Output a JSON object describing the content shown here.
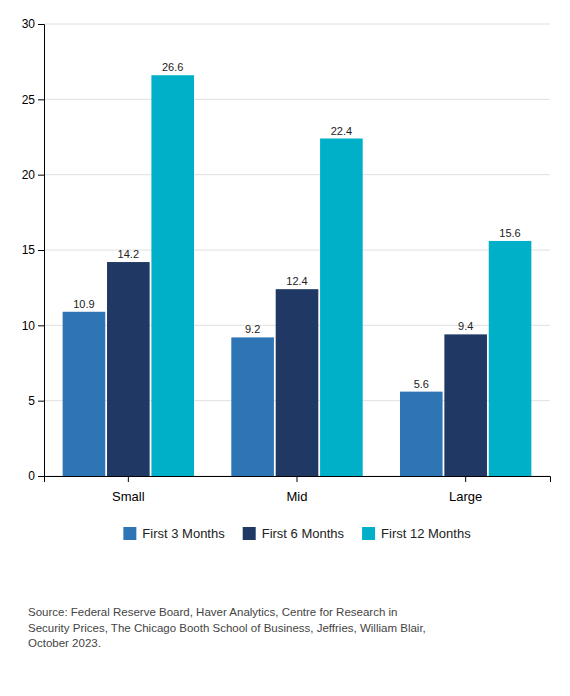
{
  "chart_data": {
    "type": "bar",
    "categories": [
      "Small",
      "Mid",
      "Large"
    ],
    "series": [
      {
        "name": "First 3 Months",
        "color": "#2E75B6",
        "values": [
          10.9,
          9.2,
          5.6
        ]
      },
      {
        "name": "First 6 Months",
        "color": "#1F3864",
        "values": [
          14.2,
          12.4,
          9.4
        ]
      },
      {
        "name": "First 12 Months",
        "color": "#00B0C8",
        "values": [
          26.6,
          22.4,
          15.6
        ]
      }
    ],
    "ylim": [
      0,
      30
    ],
    "yticks": [
      0,
      5,
      10,
      15,
      20,
      25,
      30
    ],
    "grid": true,
    "data_labels": true,
    "legend": "bottom",
    "source": "Source: Federal Reserve Board, Haver Analytics, Centre for Research in\nSecurity Prices, The Chicago Booth School of Business, Jeffries, William Blair,\nOctober 2023."
  }
}
